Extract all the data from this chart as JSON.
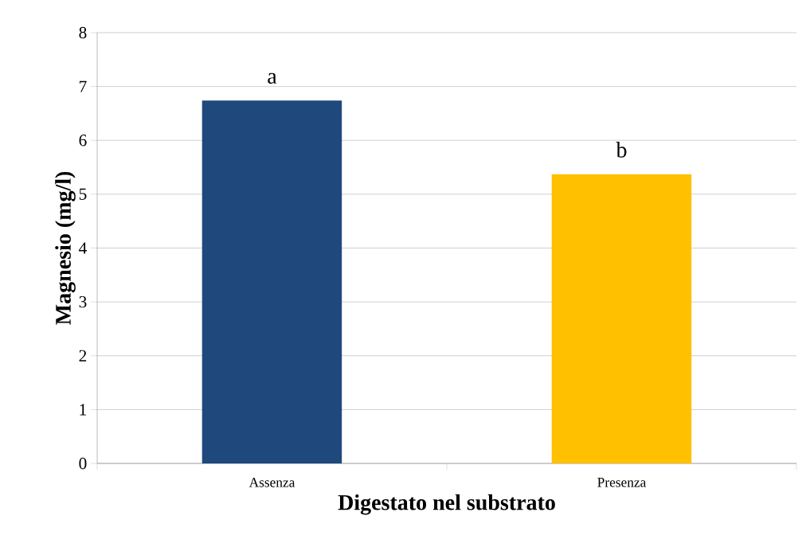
{
  "chart_data": {
    "type": "bar",
    "xlabel": "Digestato nel substrato",
    "ylabel": "Magnesio (mg/l)",
    "categories": [
      "Assenza",
      "Presenza"
    ],
    "values": [
      6.74,
      5.37
    ],
    "colors": [
      "#1f497d",
      "#ffc000"
    ],
    "ylim": [
      0,
      8
    ],
    "yticks": [
      0,
      1,
      2,
      3,
      4,
      5,
      6,
      7,
      8
    ],
    "grid": "y",
    "annotations": [
      "a",
      "b"
    ]
  }
}
